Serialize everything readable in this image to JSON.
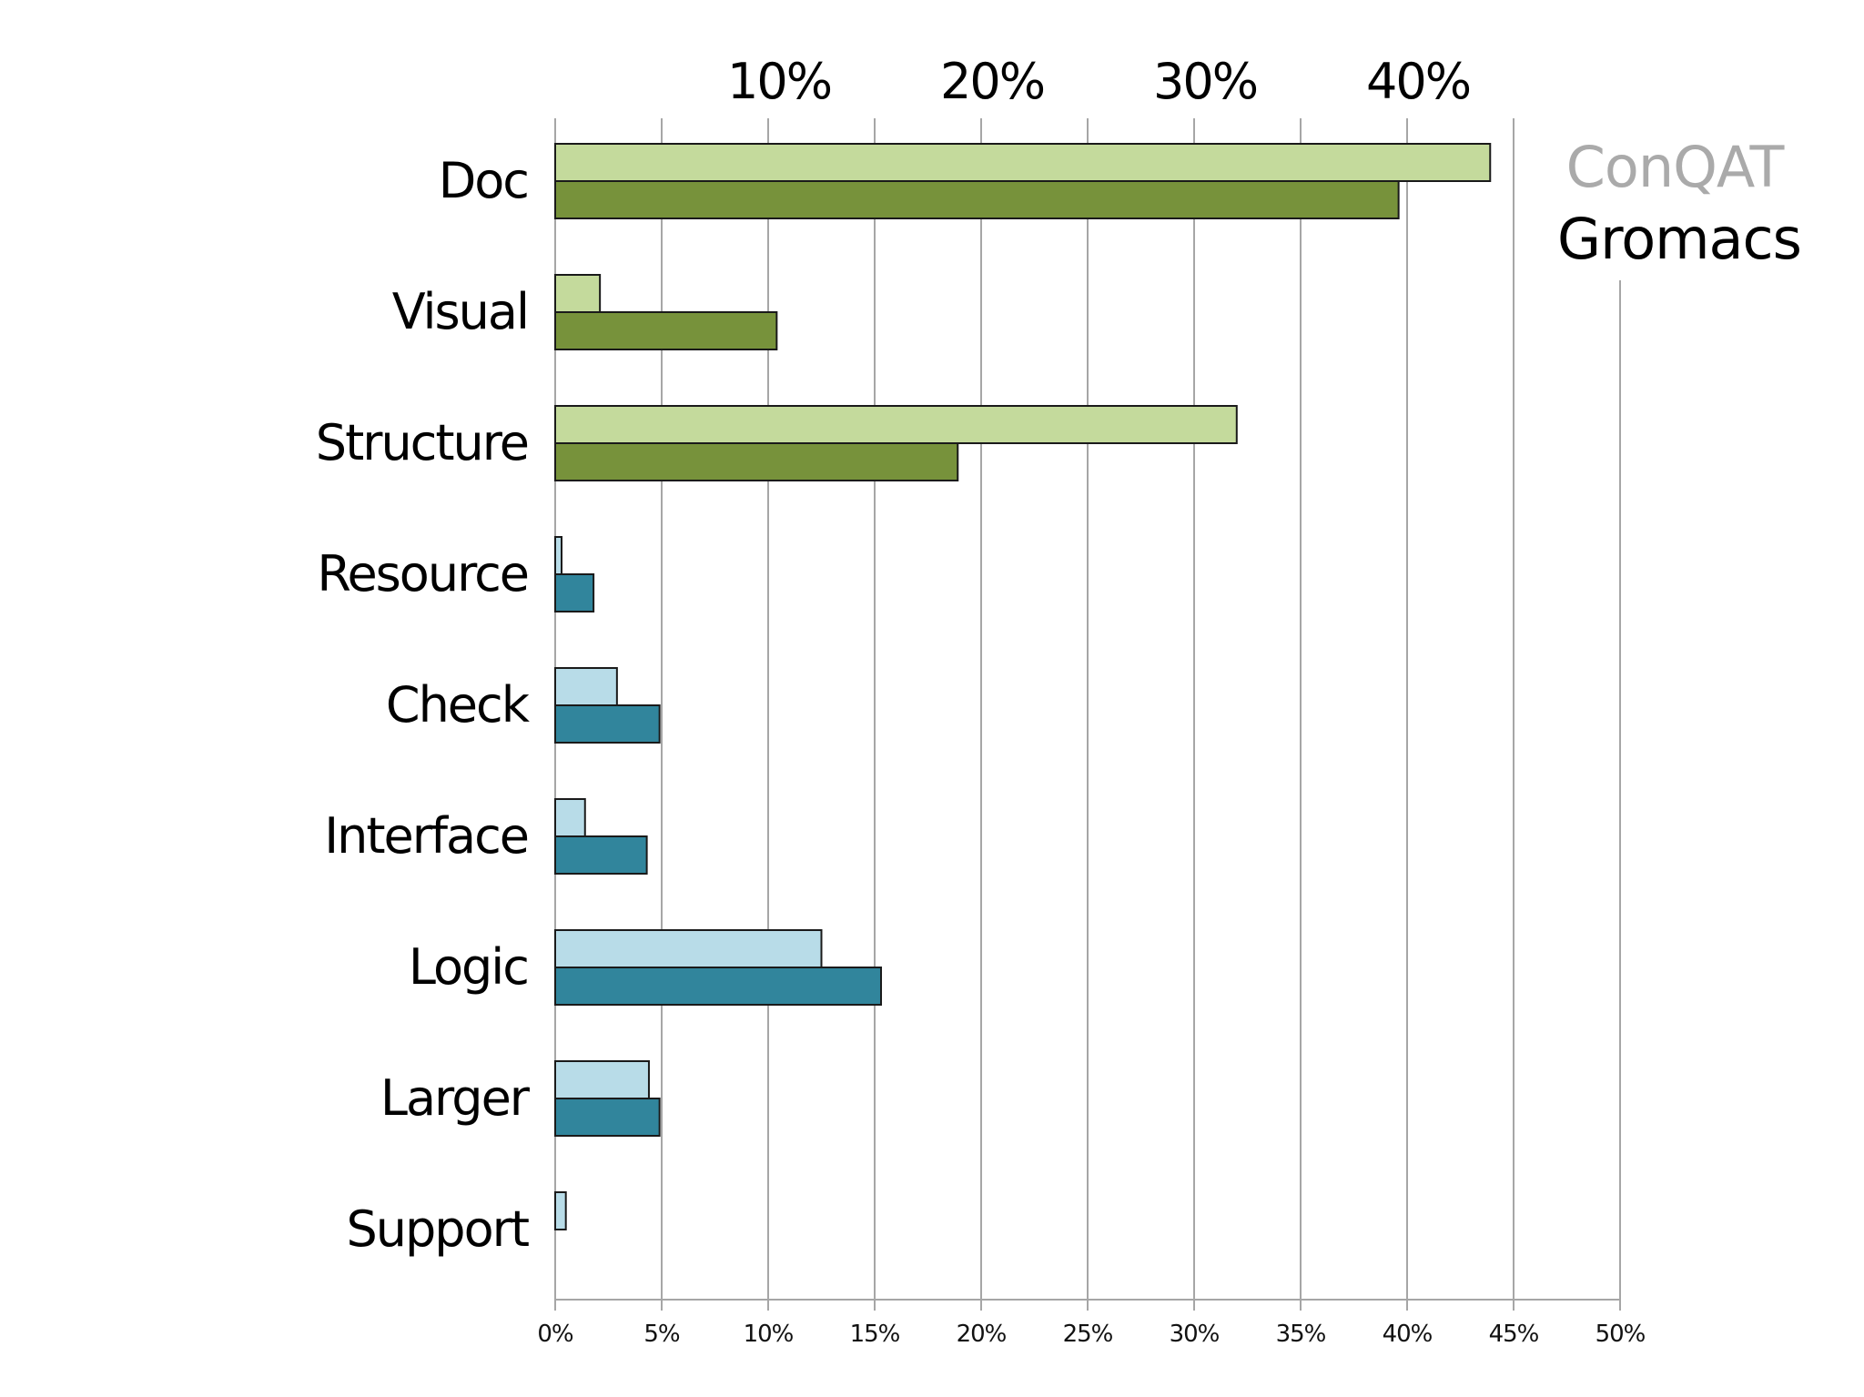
{
  "chart_data": {
    "type": "bar",
    "orientation": "horizontal",
    "categories": [
      "Doc",
      "Visual",
      "Structure",
      "Resource",
      "Check",
      "Interface",
      "Logic",
      "Larger",
      "Support"
    ],
    "series": [
      {
        "name": "ConQAT",
        "values": [
          43.9,
          2.1,
          32.0,
          0.3,
          2.9,
          1.4,
          12.5,
          4.4,
          0.5
        ],
        "colors": [
          "#c4da9c",
          "#c4da9c",
          "#c4da9c",
          "#b8dce8",
          "#b8dce8",
          "#b8dce8",
          "#b8dce8",
          "#b8dce8",
          "#b8dce8"
        ]
      },
      {
        "name": "Gromacs",
        "values": [
          39.6,
          10.4,
          18.9,
          1.8,
          4.9,
          4.3,
          15.3,
          4.9,
          0
        ],
        "colors": [
          "#77923b",
          "#77923b",
          "#77923b",
          "#31859c",
          "#31859c",
          "#31859c",
          "#31859c",
          "#31859c",
          "#31859c"
        ]
      }
    ],
    "xlim": [
      0,
      50
    ],
    "top_ticks": [
      {
        "value": 10,
        "label": "10%"
      },
      {
        "value": 20,
        "label": "20%"
      },
      {
        "value": 30,
        "label": "30%"
      },
      {
        "value": 40,
        "label": "40%"
      }
    ],
    "bottom_ticks": [
      {
        "value": 0,
        "label": "0%"
      },
      {
        "value": 5,
        "label": "5%"
      },
      {
        "value": 10,
        "label": "10%"
      },
      {
        "value": 15,
        "label": "15%"
      },
      {
        "value": 20,
        "label": "20%"
      },
      {
        "value": 25,
        "label": "25%"
      },
      {
        "value": 30,
        "label": "30%"
      },
      {
        "value": 35,
        "label": "35%"
      },
      {
        "value": 40,
        "label": "40%"
      },
      {
        "value": 45,
        "label": "45%"
      },
      {
        "value": 50,
        "label": "50%"
      }
    ],
    "grid": true,
    "legend_position": "top-right",
    "legend_colors": {
      "ConQAT": "#aaaaaa",
      "Gromacs": "#000000"
    }
  }
}
